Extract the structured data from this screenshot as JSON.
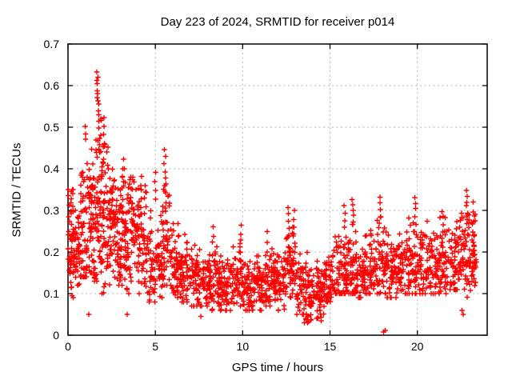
{
  "chart_data": {
    "type": "scatter",
    "title": "Day 223 of 2024, SRMTID for receiver p014",
    "xlabel": "GPS time / hours",
    "ylabel": "SRMTID / TECUs",
    "xlim": [
      0,
      24
    ],
    "ylim": [
      0,
      0.7
    ],
    "xticks": [
      0,
      5,
      10,
      15,
      20
    ],
    "yticks": [
      0,
      0.1,
      0.2,
      0.3,
      0.4,
      0.5,
      0.6,
      0.7
    ],
    "grid": true,
    "legend": "none",
    "marker": {
      "shape": "plus",
      "size": 7,
      "color": "#ff0000"
    },
    "colors": {
      "marker": "#ff0000",
      "grid": "#b5b5b5",
      "axis": "#000000",
      "background": "#ffffff"
    },
    "seed": 223,
    "x_data_max": 23.4,
    "density_bands": [
      [
        0.0,
        0.3,
        0.09,
        0.35,
        0.23,
        45
      ],
      [
        0.3,
        0.7,
        0.12,
        0.3,
        0.21,
        50
      ],
      [
        0.7,
        1.1,
        0.14,
        0.44,
        0.24,
        55
      ],
      [
        1.1,
        1.5,
        0.15,
        0.45,
        0.27,
        58
      ],
      [
        1.5,
        1.9,
        0.13,
        0.52,
        0.3,
        60
      ],
      [
        1.9,
        2.3,
        0.1,
        0.46,
        0.27,
        58
      ],
      [
        2.3,
        2.7,
        0.12,
        0.4,
        0.26,
        55
      ],
      [
        2.7,
        3.1,
        0.12,
        0.37,
        0.23,
        52
      ],
      [
        3.1,
        3.5,
        0.1,
        0.4,
        0.24,
        52
      ],
      [
        3.5,
        4.0,
        0.13,
        0.38,
        0.26,
        56
      ],
      [
        4.0,
        4.5,
        0.1,
        0.36,
        0.22,
        54
      ],
      [
        4.5,
        5.0,
        0.08,
        0.3,
        0.17,
        46
      ],
      [
        5.0,
        5.4,
        0.09,
        0.3,
        0.17,
        40
      ],
      [
        5.4,
        5.9,
        0.12,
        0.38,
        0.21,
        48
      ],
      [
        5.9,
        6.4,
        0.09,
        0.28,
        0.16,
        48
      ],
      [
        6.4,
        7.0,
        0.08,
        0.25,
        0.145,
        55
      ],
      [
        7.0,
        7.6,
        0.07,
        0.22,
        0.13,
        55
      ],
      [
        7.6,
        8.2,
        0.07,
        0.21,
        0.13,
        55
      ],
      [
        8.2,
        8.8,
        0.06,
        0.22,
        0.125,
        55
      ],
      [
        8.8,
        9.4,
        0.06,
        0.19,
        0.12,
        55
      ],
      [
        9.4,
        10.0,
        0.07,
        0.22,
        0.13,
        55
      ],
      [
        10.0,
        10.6,
        0.06,
        0.18,
        0.115,
        55
      ],
      [
        10.6,
        11.2,
        0.06,
        0.19,
        0.12,
        55
      ],
      [
        11.2,
        11.8,
        0.07,
        0.21,
        0.13,
        55
      ],
      [
        11.8,
        12.4,
        0.06,
        0.2,
        0.12,
        55
      ],
      [
        12.4,
        13.1,
        0.09,
        0.26,
        0.16,
        60
      ],
      [
        13.1,
        13.5,
        0.05,
        0.2,
        0.11,
        36
      ],
      [
        13.5,
        14.1,
        0.03,
        0.17,
        0.08,
        52
      ],
      [
        14.1,
        14.7,
        0.04,
        0.18,
        0.095,
        52
      ],
      [
        14.7,
        15.3,
        0.08,
        0.22,
        0.14,
        52
      ],
      [
        15.3,
        15.9,
        0.1,
        0.26,
        0.16,
        52
      ],
      [
        15.9,
        16.5,
        0.1,
        0.29,
        0.17,
        58
      ],
      [
        16.5,
        17.1,
        0.09,
        0.25,
        0.15,
        52
      ],
      [
        17.1,
        17.7,
        0.1,
        0.27,
        0.16,
        52
      ],
      [
        17.7,
        18.2,
        0.1,
        0.29,
        0.17,
        46
      ],
      [
        18.2,
        18.8,
        0.09,
        0.24,
        0.15,
        52
      ],
      [
        18.8,
        19.4,
        0.1,
        0.26,
        0.16,
        52
      ],
      [
        19.4,
        20.0,
        0.1,
        0.29,
        0.17,
        56
      ],
      [
        20.0,
        20.6,
        0.1,
        0.29,
        0.17,
        52
      ],
      [
        20.6,
        21.2,
        0.1,
        0.27,
        0.16,
        52
      ],
      [
        21.2,
        21.8,
        0.1,
        0.29,
        0.17,
        52
      ],
      [
        21.8,
        22.4,
        0.11,
        0.28,
        0.18,
        52
      ],
      [
        22.4,
        23.0,
        0.07,
        0.3,
        0.19,
        56
      ],
      [
        23.0,
        23.4,
        0.1,
        0.3,
        0.19,
        40
      ]
    ],
    "spikes": [
      {
        "x": 0.98,
        "n": 3,
        "y0": 0.47,
        "y1": 0.505
      },
      {
        "x": 1.68,
        "n": 8,
        "y0": 0.56,
        "y1": 0.632
      },
      {
        "x": 1.73,
        "n": 5,
        "y0": 0.5,
        "y1": 0.555
      },
      {
        "x": 2.05,
        "n": 4,
        "y0": 0.46,
        "y1": 0.52
      },
      {
        "x": 3.15,
        "n": 4,
        "y0": 0.36,
        "y1": 0.42
      },
      {
        "x": 4.2,
        "n": 4,
        "y0": 0.33,
        "y1": 0.38
      },
      {
        "x": 5.0,
        "n": 4,
        "y0": 0.33,
        "y1": 0.39
      },
      {
        "x": 5.55,
        "n": 6,
        "y0": 0.36,
        "y1": 0.445
      },
      {
        "x": 5.62,
        "n": 4,
        "y0": 0.3,
        "y1": 0.36
      },
      {
        "x": 8.3,
        "n": 3,
        "y0": 0.22,
        "y1": 0.26
      },
      {
        "x": 9.9,
        "n": 4,
        "y0": 0.21,
        "y1": 0.26
      },
      {
        "x": 11.4,
        "n": 3,
        "y0": 0.2,
        "y1": 0.25
      },
      {
        "x": 12.62,
        "n": 5,
        "y0": 0.24,
        "y1": 0.305
      },
      {
        "x": 12.95,
        "n": 5,
        "y0": 0.22,
        "y1": 0.3
      },
      {
        "x": 13.65,
        "n": 3,
        "y0": 0.15,
        "y1": 0.2
      },
      {
        "x": 14.3,
        "n": 3,
        "y0": 0.14,
        "y1": 0.18
      },
      {
        "x": 15.85,
        "n": 4,
        "y0": 0.26,
        "y1": 0.315
      },
      {
        "x": 16.3,
        "n": 5,
        "y0": 0.27,
        "y1": 0.33
      },
      {
        "x": 17.85,
        "n": 5,
        "y0": 0.27,
        "y1": 0.33
      },
      {
        "x": 19.9,
        "n": 5,
        "y0": 0.27,
        "y1": 0.335
      },
      {
        "x": 21.45,
        "n": 4,
        "y0": 0.25,
        "y1": 0.3
      },
      {
        "x": 22.85,
        "n": 7,
        "y0": 0.27,
        "y1": 0.35
      },
      {
        "x": 23.2,
        "n": 5,
        "y0": 0.22,
        "y1": 0.32
      }
    ],
    "outlier_points": [
      [
        18.08,
        0.008
      ],
      [
        18.16,
        0.012
      ],
      [
        13.72,
        0.03
      ],
      [
        1.2,
        0.05
      ],
      [
        3.4,
        0.05
      ],
      [
        7.6,
        0.045
      ],
      [
        22.55,
        0.06
      ],
      [
        22.62,
        0.05
      ],
      [
        14.5,
        0.035
      ]
    ]
  }
}
